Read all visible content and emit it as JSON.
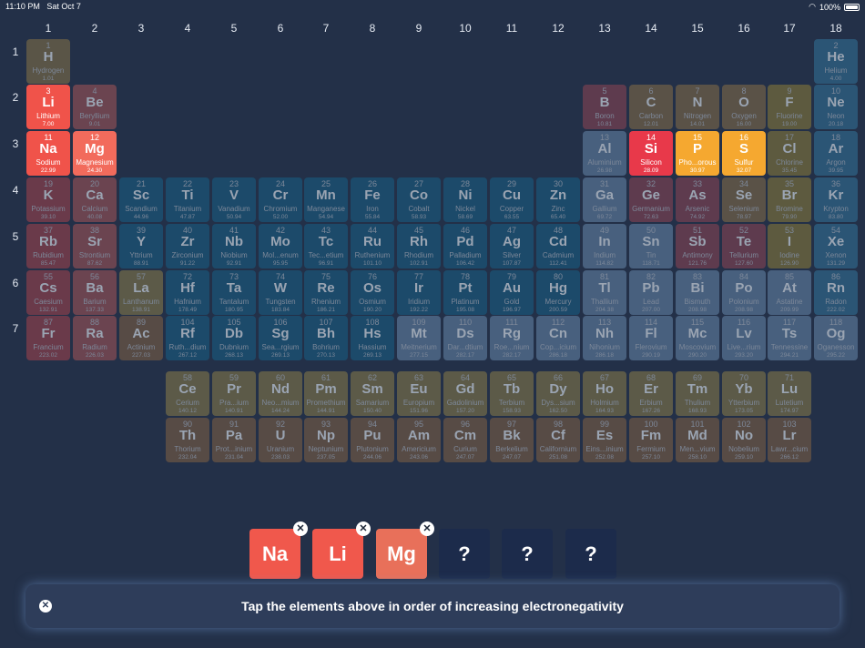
{
  "status_bar": {
    "time": "11:10 PM",
    "date": "Sat Oct 7",
    "wifi_icon": "wifi-icon",
    "battery": "100%"
  },
  "group_labels": [
    "1",
    "2",
    "3",
    "4",
    "5",
    "6",
    "7",
    "8",
    "9",
    "10",
    "11",
    "12",
    "13",
    "14",
    "15",
    "16",
    "17",
    "18"
  ],
  "period_labels": [
    "1",
    "2",
    "3",
    "4",
    "5",
    "6",
    "7"
  ],
  "category_colors": {
    "alkali": "#6a3a4a",
    "alkaline": "#6b4450",
    "transition": "#1c4a6a",
    "post": "#48607e",
    "metalloid": "#5e3b4e",
    "nonmetal": "#5a5247",
    "halogen": "#5d5a3f",
    "noble": "#2b5575",
    "lanthanide": "#5c5a48",
    "actinide": "#574b45",
    "hydrogen": "#5a5547"
  },
  "highlight_colors": {
    "red": "#f0534a",
    "coral": "#f26b5c",
    "gold": "#f5a830",
    "crimson": "#e8394a"
  },
  "elements": [
    {
      "n": "1",
      "s": "H",
      "name": "Hydrogen",
      "m": "1.01",
      "c": "hydrogen",
      "g": 1,
      "p": 1
    },
    {
      "n": "2",
      "s": "He",
      "name": "Helium",
      "m": "4.00",
      "c": "noble",
      "g": 18,
      "p": 1
    },
    {
      "n": "3",
      "s": "Li",
      "name": "Lithium",
      "m": "7.00",
      "c": "alkali",
      "g": 1,
      "p": 2,
      "hl": "red"
    },
    {
      "n": "4",
      "s": "Be",
      "name": "Beryllium",
      "m": "9.01",
      "c": "alkaline",
      "g": 2,
      "p": 2
    },
    {
      "n": "5",
      "s": "B",
      "name": "Boron",
      "m": "10.81",
      "c": "metalloid",
      "g": 13,
      "p": 2
    },
    {
      "n": "6",
      "s": "C",
      "name": "Carbon",
      "m": "12.01",
      "c": "nonmetal",
      "g": 14,
      "p": 2
    },
    {
      "n": "7",
      "s": "N",
      "name": "Nitrogen",
      "m": "14.01",
      "c": "nonmetal",
      "g": 15,
      "p": 2
    },
    {
      "n": "8",
      "s": "O",
      "name": "Oxygen",
      "m": "16.00",
      "c": "nonmetal",
      "g": 16,
      "p": 2
    },
    {
      "n": "9",
      "s": "F",
      "name": "Fluorine",
      "m": "19.00",
      "c": "halogen",
      "g": 17,
      "p": 2
    },
    {
      "n": "10",
      "s": "Ne",
      "name": "Neon",
      "m": "20.18",
      "c": "noble",
      "g": 18,
      "p": 2
    },
    {
      "n": "11",
      "s": "Na",
      "name": "Sodium",
      "m": "22.99",
      "c": "alkali",
      "g": 1,
      "p": 3,
      "hl": "red"
    },
    {
      "n": "12",
      "s": "Mg",
      "name": "Magnesium",
      "m": "24.30",
      "c": "alkaline",
      "g": 2,
      "p": 3,
      "hl": "coral"
    },
    {
      "n": "13",
      "s": "Al",
      "name": "Aluminium",
      "m": "26.98",
      "c": "post",
      "g": 13,
      "p": 3
    },
    {
      "n": "14",
      "s": "Si",
      "name": "Silicon",
      "m": "28.09",
      "c": "metalloid",
      "g": 14,
      "p": 3,
      "hl": "crimson"
    },
    {
      "n": "15",
      "s": "P",
      "name": "Pho...orous",
      "m": "30.97",
      "c": "nonmetal",
      "g": 15,
      "p": 3,
      "hl": "gold"
    },
    {
      "n": "16",
      "s": "S",
      "name": "Sulfur",
      "m": "32.07",
      "c": "nonmetal",
      "g": 16,
      "p": 3,
      "hl": "gold"
    },
    {
      "n": "17",
      "s": "Cl",
      "name": "Chlorine",
      "m": "35.45",
      "c": "halogen",
      "g": 17,
      "p": 3
    },
    {
      "n": "18",
      "s": "Ar",
      "name": "Argon",
      "m": "39.95",
      "c": "noble",
      "g": 18,
      "p": 3
    },
    {
      "n": "19",
      "s": "K",
      "name": "Potassium",
      "m": "39.10",
      "c": "alkali",
      "g": 1,
      "p": 4
    },
    {
      "n": "20",
      "s": "Ca",
      "name": "Calcium",
      "m": "40.08",
      "c": "alkaline",
      "g": 2,
      "p": 4
    },
    {
      "n": "21",
      "s": "Sc",
      "name": "Scandium",
      "m": "44.96",
      "c": "transition",
      "g": 3,
      "p": 4
    },
    {
      "n": "22",
      "s": "Ti",
      "name": "Titanium",
      "m": "47.87",
      "c": "transition",
      "g": 4,
      "p": 4
    },
    {
      "n": "23",
      "s": "V",
      "name": "Vanadium",
      "m": "50.94",
      "c": "transition",
      "g": 5,
      "p": 4
    },
    {
      "n": "24",
      "s": "Cr",
      "name": "Chromium",
      "m": "52.00",
      "c": "transition",
      "g": 6,
      "p": 4
    },
    {
      "n": "25",
      "s": "Mn",
      "name": "Manganese",
      "m": "54.94",
      "c": "transition",
      "g": 7,
      "p": 4
    },
    {
      "n": "26",
      "s": "Fe",
      "name": "Iron",
      "m": "55.84",
      "c": "transition",
      "g": 8,
      "p": 4
    },
    {
      "n": "27",
      "s": "Co",
      "name": "Cobalt",
      "m": "58.93",
      "c": "transition",
      "g": 9,
      "p": 4
    },
    {
      "n": "28",
      "s": "Ni",
      "name": "Nickel",
      "m": "58.69",
      "c": "transition",
      "g": 10,
      "p": 4
    },
    {
      "n": "29",
      "s": "Cu",
      "name": "Copper",
      "m": "63.55",
      "c": "transition",
      "g": 11,
      "p": 4
    },
    {
      "n": "30",
      "s": "Zn",
      "name": "Zinc",
      "m": "65.40",
      "c": "transition",
      "g": 12,
      "p": 4
    },
    {
      "n": "31",
      "s": "Ga",
      "name": "Gallium",
      "m": "69.72",
      "c": "post",
      "g": 13,
      "p": 4
    },
    {
      "n": "32",
      "s": "Ge",
      "name": "Germanium",
      "m": "72.63",
      "c": "metalloid",
      "g": 14,
      "p": 4
    },
    {
      "n": "33",
      "s": "As",
      "name": "Arsenic",
      "m": "74.92",
      "c": "metalloid",
      "g": 15,
      "p": 4
    },
    {
      "n": "34",
      "s": "Se",
      "name": "Selenium",
      "m": "78.97",
      "c": "nonmetal",
      "g": 16,
      "p": 4
    },
    {
      "n": "35",
      "s": "Br",
      "name": "Bromine",
      "m": "79.90",
      "c": "halogen",
      "g": 17,
      "p": 4
    },
    {
      "n": "36",
      "s": "Kr",
      "name": "Krypton",
      "m": "83.80",
      "c": "noble",
      "g": 18,
      "p": 4
    },
    {
      "n": "37",
      "s": "Rb",
      "name": "Rubidium",
      "m": "85.47",
      "c": "alkali",
      "g": 1,
      "p": 5
    },
    {
      "n": "38",
      "s": "Sr",
      "name": "Strontium",
      "m": "87.62",
      "c": "alkaline",
      "g": 2,
      "p": 5
    },
    {
      "n": "39",
      "s": "Y",
      "name": "Yttrium",
      "m": "88.91",
      "c": "transition",
      "g": 3,
      "p": 5
    },
    {
      "n": "40",
      "s": "Zr",
      "name": "Zirconium",
      "m": "91.22",
      "c": "transition",
      "g": 4,
      "p": 5
    },
    {
      "n": "41",
      "s": "Nb",
      "name": "Niobium",
      "m": "92.91",
      "c": "transition",
      "g": 5,
      "p": 5
    },
    {
      "n": "42",
      "s": "Mo",
      "name": "Mol...enum",
      "m": "95.95",
      "c": "transition",
      "g": 6,
      "p": 5
    },
    {
      "n": "43",
      "s": "Tc",
      "name": "Tec...etium",
      "m": "96.91",
      "c": "transition",
      "g": 7,
      "p": 5
    },
    {
      "n": "44",
      "s": "Ru",
      "name": "Ruthenium",
      "m": "101.10",
      "c": "transition",
      "g": 8,
      "p": 5
    },
    {
      "n": "45",
      "s": "Rh",
      "name": "Rhodium",
      "m": "102.91",
      "c": "transition",
      "g": 9,
      "p": 5
    },
    {
      "n": "46",
      "s": "Pd",
      "name": "Palladium",
      "m": "106.42",
      "c": "transition",
      "g": 10,
      "p": 5
    },
    {
      "n": "47",
      "s": "Ag",
      "name": "Silver",
      "m": "107.87",
      "c": "transition",
      "g": 11,
      "p": 5
    },
    {
      "n": "48",
      "s": "Cd",
      "name": "Cadmium",
      "m": "112.41",
      "c": "transition",
      "g": 12,
      "p": 5
    },
    {
      "n": "49",
      "s": "In",
      "name": "Indium",
      "m": "114.82",
      "c": "post",
      "g": 13,
      "p": 5
    },
    {
      "n": "50",
      "s": "Sn",
      "name": "Tin",
      "m": "118.71",
      "c": "post",
      "g": 14,
      "p": 5
    },
    {
      "n": "51",
      "s": "Sb",
      "name": "Antimony",
      "m": "121.76",
      "c": "metalloid",
      "g": 15,
      "p": 5
    },
    {
      "n": "52",
      "s": "Te",
      "name": "Tellurium",
      "m": "127.60",
      "c": "metalloid",
      "g": 16,
      "p": 5
    },
    {
      "n": "53",
      "s": "I",
      "name": "Iodine",
      "m": "126.90",
      "c": "halogen",
      "g": 17,
      "p": 5
    },
    {
      "n": "54",
      "s": "Xe",
      "name": "Xenon",
      "m": "131.29",
      "c": "noble",
      "g": 18,
      "p": 5
    },
    {
      "n": "55",
      "s": "Cs",
      "name": "Caesium",
      "m": "132.91",
      "c": "alkali",
      "g": 1,
      "p": 6
    },
    {
      "n": "56",
      "s": "Ba",
      "name": "Barium",
      "m": "137.33",
      "c": "alkaline",
      "g": 2,
      "p": 6
    },
    {
      "n": "57",
      "s": "La",
      "name": "Lanthanum",
      "m": "138.91",
      "c": "lanthanide",
      "g": 3,
      "p": 6
    },
    {
      "n": "72",
      "s": "Hf",
      "name": "Hafnium",
      "m": "178.49",
      "c": "transition",
      "g": 4,
      "p": 6
    },
    {
      "n": "73",
      "s": "Ta",
      "name": "Tantalum",
      "m": "180.95",
      "c": "transition",
      "g": 5,
      "p": 6
    },
    {
      "n": "74",
      "s": "W",
      "name": "Tungsten",
      "m": "183.84",
      "c": "transition",
      "g": 6,
      "p": 6
    },
    {
      "n": "75",
      "s": "Re",
      "name": "Rhenium",
      "m": "186.21",
      "c": "transition",
      "g": 7,
      "p": 6
    },
    {
      "n": "76",
      "s": "Os",
      "name": "Osmium",
      "m": "190.20",
      "c": "transition",
      "g": 8,
      "p": 6
    },
    {
      "n": "77",
      "s": "Ir",
      "name": "Iridium",
      "m": "192.22",
      "c": "transition",
      "g": 9,
      "p": 6
    },
    {
      "n": "78",
      "s": "Pt",
      "name": "Platinum",
      "m": "195.08",
      "c": "transition",
      "g": 10,
      "p": 6
    },
    {
      "n": "79",
      "s": "Au",
      "name": "Gold",
      "m": "196.97",
      "c": "transition",
      "g": 11,
      "p": 6
    },
    {
      "n": "80",
      "s": "Hg",
      "name": "Mercury",
      "m": "200.59",
      "c": "transition",
      "g": 12,
      "p": 6
    },
    {
      "n": "81",
      "s": "Tl",
      "name": "Thallium",
      "m": "204.38",
      "c": "post",
      "g": 13,
      "p": 6
    },
    {
      "n": "82",
      "s": "Pb",
      "name": "Lead",
      "m": "207.00",
      "c": "post",
      "g": 14,
      "p": 6
    },
    {
      "n": "83",
      "s": "Bi",
      "name": "Bismuth",
      "m": "208.98",
      "c": "post",
      "g": 15,
      "p": 6
    },
    {
      "n": "84",
      "s": "Po",
      "name": "Polonium",
      "m": "208.98",
      "c": "post",
      "g": 16,
      "p": 6
    },
    {
      "n": "85",
      "s": "At",
      "name": "Astatine",
      "m": "209.99",
      "c": "post",
      "g": 17,
      "p": 6
    },
    {
      "n": "86",
      "s": "Rn",
      "name": "Radon",
      "m": "222.02",
      "c": "noble",
      "g": 18,
      "p": 6
    },
    {
      "n": "87",
      "s": "Fr",
      "name": "Francium",
      "m": "223.02",
      "c": "alkali",
      "g": 1,
      "p": 7
    },
    {
      "n": "88",
      "s": "Ra",
      "name": "Radium",
      "m": "226.03",
      "c": "alkaline",
      "g": 2,
      "p": 7
    },
    {
      "n": "89",
      "s": "Ac",
      "name": "Actinium",
      "m": "227.03",
      "c": "actinide",
      "g": 3,
      "p": 7
    },
    {
      "n": "104",
      "s": "Rf",
      "name": "Ruth...dium",
      "m": "267.12",
      "c": "transition",
      "g": 4,
      "p": 7
    },
    {
      "n": "105",
      "s": "Db",
      "name": "Dubnium",
      "m": "268.13",
      "c": "transition",
      "g": 5,
      "p": 7
    },
    {
      "n": "106",
      "s": "Sg",
      "name": "Sea...rgium",
      "m": "269.13",
      "c": "transition",
      "g": 6,
      "p": 7
    },
    {
      "n": "107",
      "s": "Bh",
      "name": "Bohrium",
      "m": "270.13",
      "c": "transition",
      "g": 7,
      "p": 7
    },
    {
      "n": "108",
      "s": "Hs",
      "name": "Hassium",
      "m": "269.13",
      "c": "transition",
      "g": 8,
      "p": 7
    },
    {
      "n": "109",
      "s": "Mt",
      "name": "Meitnerium",
      "m": "277.15",
      "c": "post",
      "g": 9,
      "p": 7
    },
    {
      "n": "110",
      "s": "Ds",
      "name": "Dar...dtium",
      "m": "282.17",
      "c": "post",
      "g": 10,
      "p": 7
    },
    {
      "n": "111",
      "s": "Rg",
      "name": "Roe...nium",
      "m": "282.17",
      "c": "post",
      "g": 11,
      "p": 7
    },
    {
      "n": "112",
      "s": "Cn",
      "name": "Cop...icium",
      "m": "286.18",
      "c": "post",
      "g": 12,
      "p": 7
    },
    {
      "n": "113",
      "s": "Nh",
      "name": "Nihonium",
      "m": "286.18",
      "c": "post",
      "g": 13,
      "p": 7
    },
    {
      "n": "114",
      "s": "Fl",
      "name": "Flerovium",
      "m": "290.19",
      "c": "post",
      "g": 14,
      "p": 7
    },
    {
      "n": "115",
      "s": "Mc",
      "name": "Moscovium",
      "m": "290.20",
      "c": "post",
      "g": 15,
      "p": 7
    },
    {
      "n": "116",
      "s": "Lv",
      "name": "Live...rium",
      "m": "293.20",
      "c": "post",
      "g": 16,
      "p": 7
    },
    {
      "n": "117",
      "s": "Ts",
      "name": "Tennessine",
      "m": "294.21",
      "c": "post",
      "g": 17,
      "p": 7
    },
    {
      "n": "118",
      "s": "Og",
      "name": "Oganesson",
      "m": "295.22",
      "c": "post",
      "g": 18,
      "p": 7
    },
    {
      "n": "58",
      "s": "Ce",
      "name": "Cerium",
      "m": "140.12",
      "c": "lanthanide",
      "g": 4,
      "p": 8
    },
    {
      "n": "59",
      "s": "Pr",
      "name": "Pra...ium",
      "m": "140.91",
      "c": "lanthanide",
      "g": 5,
      "p": 8
    },
    {
      "n": "60",
      "s": "Nd",
      "name": "Neo...mium",
      "m": "144.24",
      "c": "lanthanide",
      "g": 6,
      "p": 8
    },
    {
      "n": "61",
      "s": "Pm",
      "name": "Promethium",
      "m": "144.91",
      "c": "lanthanide",
      "g": 7,
      "p": 8
    },
    {
      "n": "62",
      "s": "Sm",
      "name": "Samarium",
      "m": "150.40",
      "c": "lanthanide",
      "g": 8,
      "p": 8
    },
    {
      "n": "63",
      "s": "Eu",
      "name": "Europium",
      "m": "151.96",
      "c": "lanthanide",
      "g": 9,
      "p": 8
    },
    {
      "n": "64",
      "s": "Gd",
      "name": "Gadolinium",
      "m": "157.20",
      "c": "lanthanide",
      "g": 10,
      "p": 8
    },
    {
      "n": "65",
      "s": "Tb",
      "name": "Terbium",
      "m": "158.93",
      "c": "lanthanide",
      "g": 11,
      "p": 8
    },
    {
      "n": "66",
      "s": "Dy",
      "name": "Dys...sium",
      "m": "162.50",
      "c": "lanthanide",
      "g": 12,
      "p": 8
    },
    {
      "n": "67",
      "s": "Ho",
      "name": "Holmium",
      "m": "164.93",
      "c": "lanthanide",
      "g": 13,
      "p": 8
    },
    {
      "n": "68",
      "s": "Er",
      "name": "Erbium",
      "m": "167.26",
      "c": "lanthanide",
      "g": 14,
      "p": 8
    },
    {
      "n": "69",
      "s": "Tm",
      "name": "Thulium",
      "m": "168.93",
      "c": "lanthanide",
      "g": 15,
      "p": 8
    },
    {
      "n": "70",
      "s": "Yb",
      "name": "Ytterbium",
      "m": "173.05",
      "c": "lanthanide",
      "g": 16,
      "p": 8
    },
    {
      "n": "71",
      "s": "Lu",
      "name": "Lutetium",
      "m": "174.97",
      "c": "lanthanide",
      "g": 17,
      "p": 8
    },
    {
      "n": "90",
      "s": "Th",
      "name": "Thorium",
      "m": "232.04",
      "c": "actinide",
      "g": 4,
      "p": 9
    },
    {
      "n": "91",
      "s": "Pa",
      "name": "Prot...inium",
      "m": "231.04",
      "c": "actinide",
      "g": 5,
      "p": 9
    },
    {
      "n": "92",
      "s": "U",
      "name": "Uranium",
      "m": "238.03",
      "c": "actinide",
      "g": 6,
      "p": 9
    },
    {
      "n": "93",
      "s": "Np",
      "name": "Neptunium",
      "m": "237.05",
      "c": "actinide",
      "g": 7,
      "p": 9
    },
    {
      "n": "94",
      "s": "Pu",
      "name": "Plutonium",
      "m": "244.06",
      "c": "actinide",
      "g": 8,
      "p": 9
    },
    {
      "n": "95",
      "s": "Am",
      "name": "Americium",
      "m": "243.06",
      "c": "actinide",
      "g": 9,
      "p": 9
    },
    {
      "n": "96",
      "s": "Cm",
      "name": "Curium",
      "m": "247.07",
      "c": "actinide",
      "g": 10,
      "p": 9
    },
    {
      "n": "97",
      "s": "Bk",
      "name": "Berkelium",
      "m": "247.07",
      "c": "actinide",
      "g": 11,
      "p": 9
    },
    {
      "n": "98",
      "s": "Cf",
      "name": "Californium",
      "m": "251.08",
      "c": "actinide",
      "g": 12,
      "p": 9
    },
    {
      "n": "99",
      "s": "Es",
      "name": "Eins...inium",
      "m": "252.08",
      "c": "actinide",
      "g": 13,
      "p": 9
    },
    {
      "n": "100",
      "s": "Fm",
      "name": "Fermium",
      "m": "257.10",
      "c": "actinide",
      "g": 14,
      "p": 9
    },
    {
      "n": "101",
      "s": "Md",
      "name": "Men...vium",
      "m": "258.10",
      "c": "actinide",
      "g": 15,
      "p": 9
    },
    {
      "n": "102",
      "s": "No",
      "name": "Nobelium",
      "m": "259.10",
      "c": "actinide",
      "g": 16,
      "p": 9
    },
    {
      "n": "103",
      "s": "Lr",
      "name": "Lawr...cium",
      "m": "266.12",
      "c": "actinide",
      "g": 17,
      "p": 9
    }
  ],
  "answer_slots": [
    {
      "label": "Na",
      "filled": true,
      "color": "#f0584c",
      "remove_icon": "close-icon"
    },
    {
      "label": "Li",
      "filled": true,
      "color": "#f0584c",
      "remove_icon": "close-icon"
    },
    {
      "label": "Mg",
      "filled": true,
      "color": "#e8705a",
      "remove_icon": "close-icon"
    },
    {
      "label": "?",
      "filled": false
    },
    {
      "label": "?",
      "filled": false
    },
    {
      "label": "?",
      "filled": false
    }
  ],
  "prompt": {
    "text": "Tap the elements above in order of increasing electronegativity",
    "close_icon": "close-icon"
  }
}
